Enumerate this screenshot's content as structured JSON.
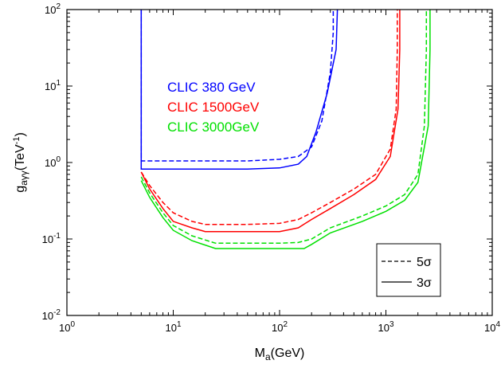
{
  "chart_data": {
    "type": "line",
    "xscale": "log",
    "yscale": "log",
    "xlim": [
      1,
      10000
    ],
    "ylim": [
      0.01,
      100
    ],
    "xticks": [
      {
        "value": 1,
        "mant": "10",
        "exp": "0"
      },
      {
        "value": 10,
        "mant": "10",
        "exp": "1"
      },
      {
        "value": 100,
        "mant": "10",
        "exp": "2"
      },
      {
        "value": 1000,
        "mant": "10",
        "exp": "3"
      },
      {
        "value": 10000,
        "mant": "10",
        "exp": "4"
      }
    ],
    "yticks": [
      {
        "value": 0.01,
        "mant": "10",
        "exp": "-2"
      },
      {
        "value": 0.1,
        "mant": "10",
        "exp": "-1"
      },
      {
        "value": 1,
        "mant": "10",
        "exp": "0"
      },
      {
        "value": 10,
        "mant": "10",
        "exp": "1"
      },
      {
        "value": 100,
        "mant": "10",
        "exp": "2"
      }
    ],
    "xlabel": {
      "main": "M",
      "sub": "a",
      "rest": "(GeV)"
    },
    "ylabel": {
      "main": "g",
      "sub": "aγγ",
      "rest": "(TeV",
      "sup": "-1",
      "close": ")"
    },
    "colors": {
      "clic380": "#0000ff",
      "clic1500": "#ff0000",
      "clic3000": "#00e000",
      "axis": "#000000"
    },
    "labels": [
      {
        "text": "CLIC 380  GeV",
        "color": "#0000ff"
      },
      {
        "text": "CLIC 1500GeV",
        "color": "#ff0000"
      },
      {
        "text": "CLIC 3000GeV",
        "color": "#00e000"
      }
    ],
    "legend": {
      "position": "bottom-right",
      "entries": [
        {
          "style": "dashed",
          "text": "5",
          "greek": "σ"
        },
        {
          "style": "solid",
          "text": "3",
          "greek": "σ"
        }
      ]
    },
    "series": [
      {
        "key": "clic380",
        "style": "dashed",
        "color": "#0000ff",
        "points": [
          [
            5,
            100
          ],
          [
            5,
            1.05
          ],
          [
            10,
            1.05
          ],
          [
            50,
            1.05
          ],
          [
            100,
            1.1
          ],
          [
            150,
            1.2
          ],
          [
            200,
            1.6
          ],
          [
            250,
            3.5
          ],
          [
            300,
            15
          ],
          [
            320,
            50
          ],
          [
            320,
            100
          ]
        ]
      },
      {
        "key": "clic380",
        "style": "solid",
        "color": "#0000ff",
        "points": [
          [
            5,
            100
          ],
          [
            5,
            0.82
          ],
          [
            10,
            0.82
          ],
          [
            50,
            0.82
          ],
          [
            100,
            0.85
          ],
          [
            150,
            0.95
          ],
          [
            180,
            1.2
          ],
          [
            220,
            2.5
          ],
          [
            280,
            8
          ],
          [
            340,
            30
          ],
          [
            350,
            100
          ]
        ]
      },
      {
        "key": "clic1500",
        "style": "dashed",
        "color": "#ff0000",
        "points": [
          [
            5,
            0.75
          ],
          [
            6,
            0.5
          ],
          [
            8,
            0.3
          ],
          [
            10,
            0.22
          ],
          [
            15,
            0.17
          ],
          [
            20,
            0.155
          ],
          [
            50,
            0.155
          ],
          [
            100,
            0.16
          ],
          [
            150,
            0.18
          ],
          [
            200,
            0.22
          ],
          [
            300,
            0.3
          ],
          [
            500,
            0.45
          ],
          [
            800,
            0.7
          ],
          [
            1100,
            1.5
          ],
          [
            1250,
            5
          ],
          [
            1280,
            30
          ],
          [
            1280,
            100
          ]
        ]
      },
      {
        "key": "clic1500",
        "style": "solid",
        "color": "#ff0000",
        "points": [
          [
            5,
            0.75
          ],
          [
            6,
            0.45
          ],
          [
            8,
            0.25
          ],
          [
            10,
            0.17
          ],
          [
            15,
            0.14
          ],
          [
            20,
            0.125
          ],
          [
            50,
            0.125
          ],
          [
            100,
            0.125
          ],
          [
            150,
            0.14
          ],
          [
            200,
            0.18
          ],
          [
            300,
            0.25
          ],
          [
            500,
            0.38
          ],
          [
            800,
            0.6
          ],
          [
            1100,
            1.2
          ],
          [
            1300,
            5
          ],
          [
            1350,
            30
          ],
          [
            1350,
            100
          ]
        ]
      },
      {
        "key": "clic3000",
        "style": "dashed",
        "color": "#00e000",
        "points": [
          [
            5,
            0.65
          ],
          [
            6,
            0.4
          ],
          [
            8,
            0.22
          ],
          [
            10,
            0.15
          ],
          [
            15,
            0.11
          ],
          [
            25,
            0.088
          ],
          [
            50,
            0.088
          ],
          [
            100,
            0.088
          ],
          [
            150,
            0.09
          ],
          [
            200,
            0.1
          ],
          [
            300,
            0.14
          ],
          [
            600,
            0.2
          ],
          [
            1000,
            0.27
          ],
          [
            1500,
            0.38
          ],
          [
            2000,
            0.7
          ],
          [
            2300,
            3
          ],
          [
            2400,
            30
          ],
          [
            2400,
            100
          ]
        ]
      },
      {
        "key": "clic3000",
        "style": "solid",
        "color": "#00e000",
        "points": [
          [
            5,
            0.58
          ],
          [
            6,
            0.35
          ],
          [
            8,
            0.19
          ],
          [
            10,
            0.13
          ],
          [
            15,
            0.095
          ],
          [
            25,
            0.075
          ],
          [
            50,
            0.075
          ],
          [
            100,
            0.075
          ],
          [
            170,
            0.075
          ],
          [
            200,
            0.085
          ],
          [
            300,
            0.12
          ],
          [
            600,
            0.17
          ],
          [
            1000,
            0.23
          ],
          [
            1500,
            0.32
          ],
          [
            2000,
            0.55
          ],
          [
            2500,
            3
          ],
          [
            2600,
            30
          ],
          [
            2600,
            100
          ]
        ]
      }
    ]
  }
}
